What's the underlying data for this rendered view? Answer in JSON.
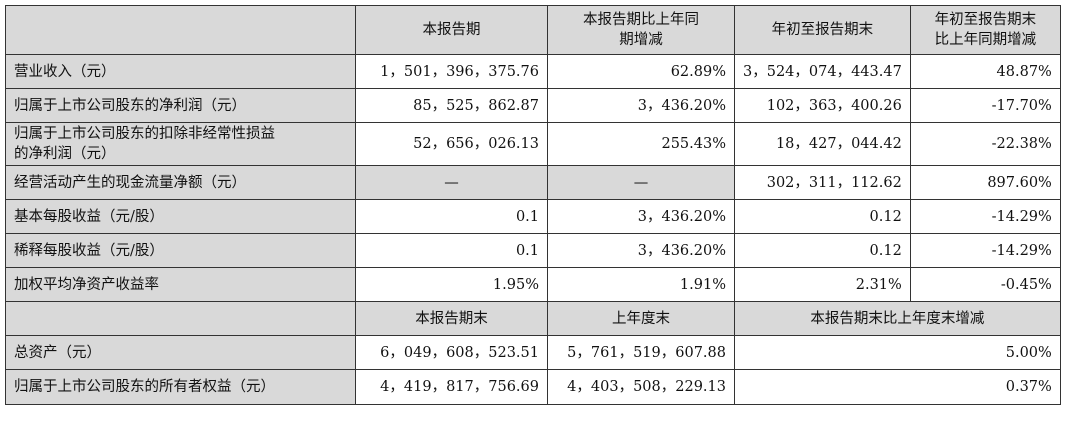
{
  "header": {
    "col1": "本报告期",
    "col2_line1": "本报告期比上年同",
    "col2_line2": "期增减",
    "col3": "年初至报告期末",
    "col4_line1": "年初至报告期末",
    "col4_line2": "比上年同期增减"
  },
  "rows": [
    {
      "label": "营业收入（元）",
      "v1": "1，501，396，375.76",
      "v2": "62.89%",
      "v3": "3，524，074，443.47",
      "v4": "48.87%"
    },
    {
      "label": "归属于上市公司股东的净利润（元）",
      "v1": "85，525，862.87",
      "v2": "3，436.20%",
      "v3": "102，363，400.26",
      "v4": "-17.70%"
    },
    {
      "label_line1": "归属于上市公司股东的扣除非经常性损益",
      "label_line2": "的净利润（元）",
      "v1": "52，656，026.13",
      "v2": "255.43%",
      "v3": "18，427，044.42",
      "v4": "-22.38%"
    },
    {
      "label": "经营活动产生的现金流量净额（元）",
      "v1": "—",
      "v2": "—",
      "v3": "302，311，112.62",
      "v4": "897.60%"
    },
    {
      "label": "基本每股收益（元/股）",
      "v1": "0.1",
      "v2": "3，436.20%",
      "v3": "0.12",
      "v4": "-14.29%"
    },
    {
      "label": "稀释每股收益（元/股）",
      "v1": "0.1",
      "v2": "3，436.20%",
      "v3": "0.12",
      "v4": "-14.29%"
    },
    {
      "label": "加权平均净资产收益率",
      "v1": "1.95%",
      "v2": "1.91%",
      "v3": "2.31%",
      "v4": "-0.45%"
    }
  ],
  "header2": {
    "col1": "本报告期末",
    "col2": "上年度末",
    "col3": "本报告期末比上年度末增减"
  },
  "rows2": [
    {
      "label": "总资产（元）",
      "v1": "6，049，608，523.51",
      "v2": "5，761，519，607.88",
      "v3": "5.00%"
    },
    {
      "label": "归属于上市公司股东的所有者权益（元）",
      "v1": "4，419，817，756.69",
      "v2": "4，403，508，229.13",
      "v3": "0.37%"
    }
  ]
}
